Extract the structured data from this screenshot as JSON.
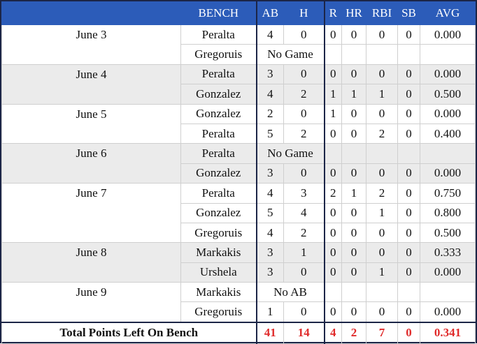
{
  "header": {
    "columns": [
      "BENCH",
      "AB",
      "H",
      "R",
      "HR",
      "RBI",
      "SB",
      "AVG"
    ]
  },
  "groups": [
    {
      "date": "June 3",
      "rows": [
        {
          "player": "Peralta",
          "stats": [
            "4",
            "0",
            "0",
            "0",
            "0",
            "0",
            "0.000"
          ]
        },
        {
          "player": "Gregoruis",
          "note": "No Game"
        }
      ]
    },
    {
      "date": "June 4",
      "rows": [
        {
          "player": "Peralta",
          "stats": [
            "3",
            "0",
            "0",
            "0",
            "0",
            "0",
            "0.000"
          ]
        },
        {
          "player": "Gonzalez",
          "stats": [
            "4",
            "2",
            "1",
            "1",
            "1",
            "0",
            "0.500"
          ]
        }
      ]
    },
    {
      "date": "June 5",
      "rows": [
        {
          "player": "Gonzalez",
          "stats": [
            "2",
            "0",
            "1",
            "0",
            "0",
            "0",
            "0.000"
          ]
        },
        {
          "player": "Peralta",
          "stats": [
            "5",
            "2",
            "0",
            "0",
            "2",
            "0",
            "0.400"
          ]
        }
      ]
    },
    {
      "date": "June 6",
      "rows": [
        {
          "player": "Peralta",
          "note": "No Game"
        },
        {
          "player": "Gonzalez",
          "stats": [
            "3",
            "0",
            "0",
            "0",
            "0",
            "0",
            "0.000"
          ]
        }
      ]
    },
    {
      "date": "June 7",
      "rows": [
        {
          "player": "Peralta",
          "stats": [
            "4",
            "3",
            "2",
            "1",
            "2",
            "0",
            "0.750"
          ]
        },
        {
          "player": "Gonzalez",
          "stats": [
            "5",
            "4",
            "0",
            "0",
            "1",
            "0",
            "0.800"
          ]
        },
        {
          "player": "Gregoruis",
          "stats": [
            "4",
            "2",
            "0",
            "0",
            "0",
            "0",
            "0.500"
          ]
        }
      ]
    },
    {
      "date": "June 8",
      "rows": [
        {
          "player": "Markakis",
          "stats": [
            "3",
            "1",
            "0",
            "0",
            "0",
            "0",
            "0.333"
          ]
        },
        {
          "player": "Urshela",
          "stats": [
            "3",
            "0",
            "0",
            "0",
            "1",
            "0",
            "0.000"
          ]
        }
      ]
    },
    {
      "date": "June 9",
      "rows": [
        {
          "player": "Markakis",
          "note": "No AB"
        },
        {
          "player": "Gregoruis",
          "stats": [
            "1",
            "0",
            "0",
            "0",
            "0",
            "0",
            "0.000"
          ]
        }
      ]
    }
  ],
  "total": {
    "label": "Total Points Left On Bench",
    "stats": [
      "41",
      "14",
      "4",
      "2",
      "7",
      "0",
      "0.341"
    ]
  }
}
